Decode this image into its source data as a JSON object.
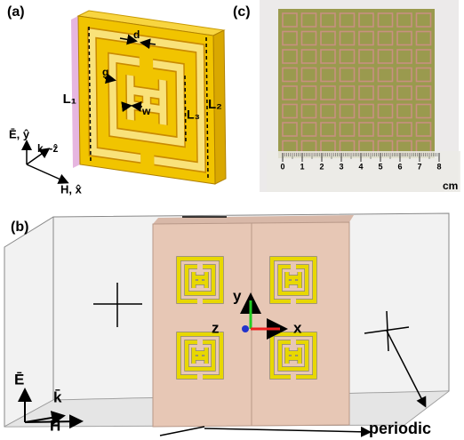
{
  "panel_a": {
    "label": "(a)",
    "dims": {
      "d": "d",
      "g": "g",
      "w": "w",
      "L1": "L₁",
      "L2": "L₂",
      "L3": "L₃"
    },
    "axes": {
      "e": "Ē, ŷ",
      "k": "k, -ẑ",
      "h": "H, x̂"
    }
  },
  "panel_b": {
    "label": "(b)",
    "axes": {
      "y": "y",
      "z": "z",
      "x": "x"
    },
    "fields": {
      "e": "Ē",
      "k": "k̄",
      "h": "H̄"
    },
    "boundary": "periodic"
  },
  "panel_c": {
    "label": "(c)",
    "ruler_ticks": [
      0,
      1,
      2,
      3,
      4,
      5,
      6,
      7,
      8
    ],
    "unit": "cm"
  }
}
